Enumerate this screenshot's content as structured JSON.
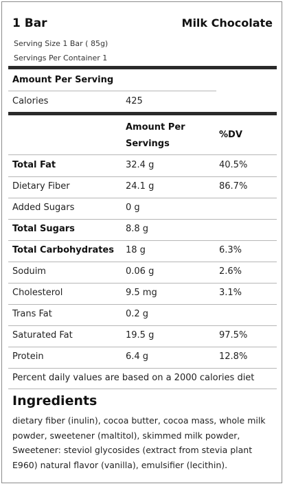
{
  "header": {
    "amount": "1 Bar",
    "product": "Milk Chocolate",
    "serving_size": "Serving Size 1 Bar ( 85g)",
    "servings_per_container": "Servings Per Container 1"
  },
  "amount_per_serving": "Amount Per Serving",
  "calories": {
    "label": "Calories",
    "value": "425"
  },
  "table_header": {
    "amount_line1": "Amount Per",
    "amount_line2": "Servings",
    "dv": "%DV"
  },
  "nutrients": [
    {
      "name": "Total Fat",
      "amount": "32.4 g",
      "dv": "40.5%",
      "bold": true
    },
    {
      "name": "Dietary Fiber",
      "amount": "24.1 g",
      "dv": "86.7%",
      "bold": false
    },
    {
      "name": "Added Sugars",
      "amount": "0 g",
      "dv": "",
      "bold": false
    },
    {
      "name": "Total Sugars",
      "amount": "8.8 g",
      "dv": "",
      "bold": true
    },
    {
      "name": "Total Carbohydrates",
      "amount": "18 g",
      "dv": "6.3%",
      "bold": true
    },
    {
      "name": "Soduim",
      "amount": "0.06 g",
      "dv": "2.6%",
      "bold": false
    },
    {
      "name": "Cholesterol",
      "amount": "9.5 mg",
      "dv": "3.1%",
      "bold": false
    },
    {
      "name": "Trans Fat",
      "amount": "0.2 g",
      "dv": "",
      "bold": false
    },
    {
      "name": "Saturated Fat",
      "amount": "19.5 g",
      "dv": "97.5%",
      "bold": false
    },
    {
      "name": "Protein",
      "amount": "6.4 g",
      "dv": "12.8%",
      "bold": false
    }
  ],
  "footnote": "Percent daily values are based on a 2000 calories diet",
  "ingredients": {
    "title": "Ingredients",
    "text": "dietary fiber (inulin), cocoa butter, cocoa mass, whole milk powder, sweetener (maltitol), skimmed milk powder, Sweetener: steviol glycosides (extract from stevia plant E960) natural flavor (vanilla), emulsifier (lecithin)."
  }
}
